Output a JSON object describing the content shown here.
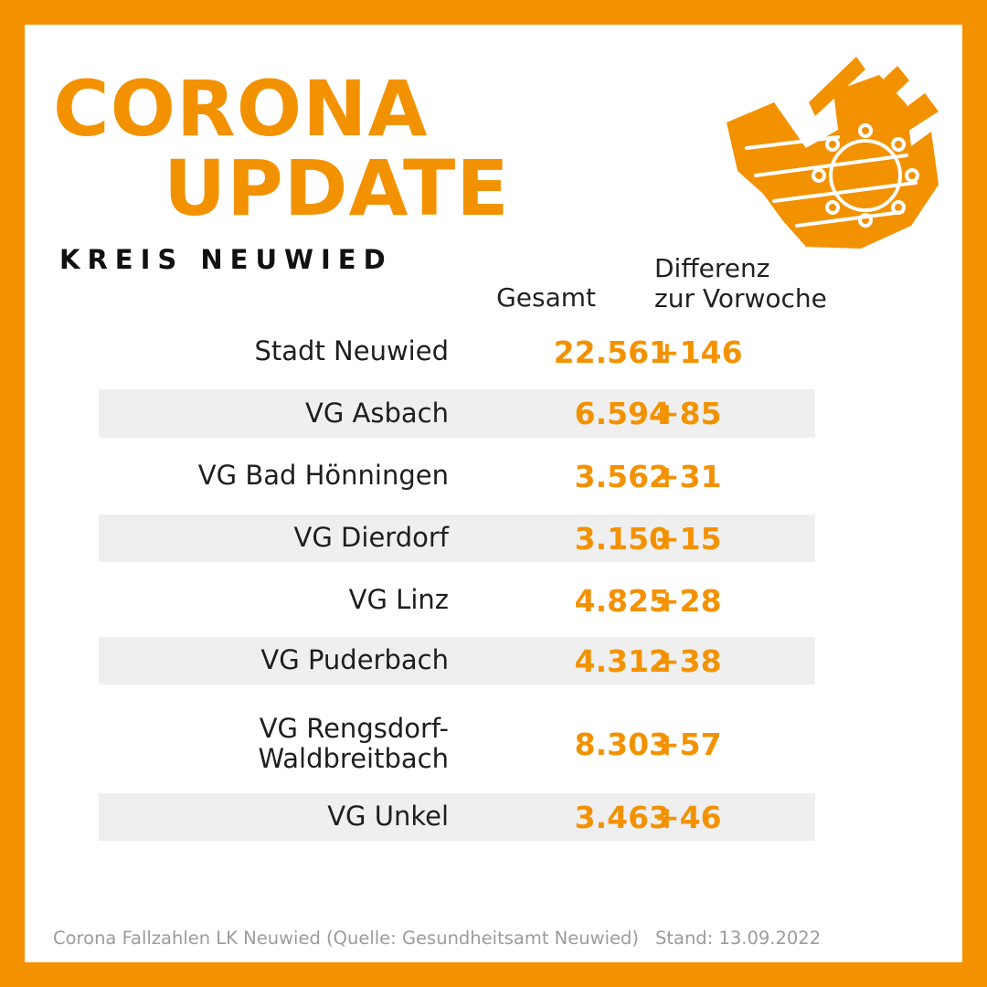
{
  "title": {
    "line1": "CORONA",
    "line2": "UPDATE"
  },
  "subtitle": "KREIS NEUWIED",
  "logo": {
    "icon": "castle-virus-logo-icon"
  },
  "columns": {
    "gesamt": "Gesamt",
    "diff_line1": "Differenz",
    "diff_line2": "zur Vorwoche"
  },
  "rows": [
    {
      "name": "Stadt Neuwied",
      "gesamt": "22.561",
      "diff": "+146"
    },
    {
      "name": "VG Asbach",
      "gesamt": "6.594",
      "diff": "+85"
    },
    {
      "name": "VG Bad Hönningen",
      "gesamt": "3.562",
      "diff": "+31"
    },
    {
      "name": "VG Dierdorf",
      "gesamt": "3.150",
      "diff": "+15"
    },
    {
      "name": "VG Linz",
      "gesamt": "4.825",
      "diff": "+28"
    },
    {
      "name": "VG Puderbach",
      "gesamt": "4.312",
      "diff": "+38"
    },
    {
      "name_line1": "VG Rengsdorf-",
      "name_line2": "Waldbreitbach",
      "gesamt": "8.303",
      "diff": "+57"
    },
    {
      "name": "VG Unkel",
      "gesamt": "3.463",
      "diff": "+46"
    }
  ],
  "footer": {
    "source": "Corona Fallzahlen LK Neuwied (Quelle: Gesundheitsamt Neuwied)",
    "stand": "Stand: 13.09.2022"
  },
  "colors": {
    "accent": "#f39200",
    "row_shade": "#efefef",
    "text": "#1e1e1e",
    "footer": "#9c9c9c"
  }
}
